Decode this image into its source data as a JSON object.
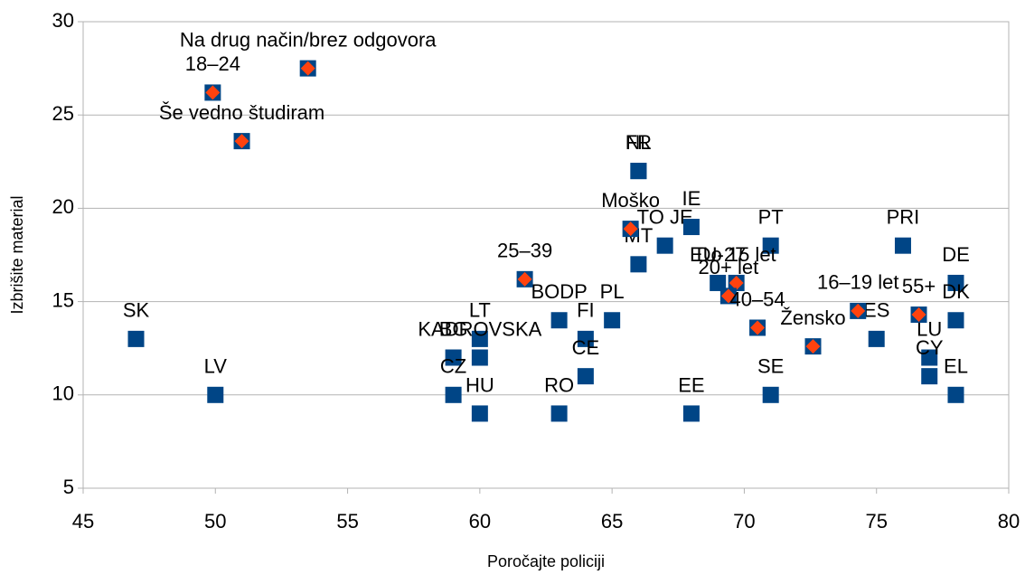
{
  "chart_data": {
    "type": "scatter",
    "xlabel": "Poročajte policiji",
    "ylabel": "Izbrišite material",
    "xlim": [
      45,
      80
    ],
    "xticks": [
      45,
      50,
      55,
      60,
      65,
      70,
      75,
      80
    ],
    "ylim": [
      5,
      30
    ],
    "yticks": [
      5,
      10,
      15,
      20,
      25,
      30
    ],
    "grid": true,
    "series": [
      {
        "color": "#004586",
        "marker": "square",
        "labels": [
          "SK",
          "LV",
          "BG",
          "CZ",
          "LT",
          "KADROVSKA",
          "HU",
          "RO",
          "BODP",
          "FI",
          "CE",
          "PL",
          "FR",
          "NL",
          "MT",
          "TO JE",
          "IE",
          "EE",
          "EU-27",
          "PT",
          "SE",
          "ES",
          "PRI",
          "LU",
          "CY",
          "DE",
          "DK",
          "EL"
        ],
        "x": [
          47,
          50,
          59,
          59,
          60,
          60,
          60,
          63,
          63,
          64,
          64,
          65,
          66,
          66,
          66,
          67,
          68,
          68,
          69,
          71,
          71,
          75,
          76,
          77,
          77,
          78,
          78,
          78
        ],
        "values": [
          13,
          10,
          12,
          10,
          13,
          12,
          9,
          9,
          14,
          13,
          11,
          14,
          22,
          22,
          17,
          18,
          19,
          9,
          16,
          18,
          10,
          13,
          18,
          12,
          11,
          16,
          14,
          10
        ]
      },
      {
        "color": "#ff420e",
        "marker": "diamond",
        "labels": [
          "Na drug način/brez odgovora",
          "18–24",
          "Še vedno študiram",
          "25–39",
          "Moško",
          "Do 15 let",
          "20+ let",
          "40–54",
          "Žensko",
          "16–19 let",
          "55+"
        ],
        "x": [
          53.5,
          49.9,
          51,
          61.7,
          65.7,
          69.7,
          69.4,
          70.5,
          72.6,
          74.3,
          76.6
        ],
        "values": [
          27.5,
          26.2,
          23.6,
          16.2,
          18.9,
          16.0,
          15.3,
          13.6,
          12.6,
          14.5,
          14.3
        ]
      }
    ]
  }
}
